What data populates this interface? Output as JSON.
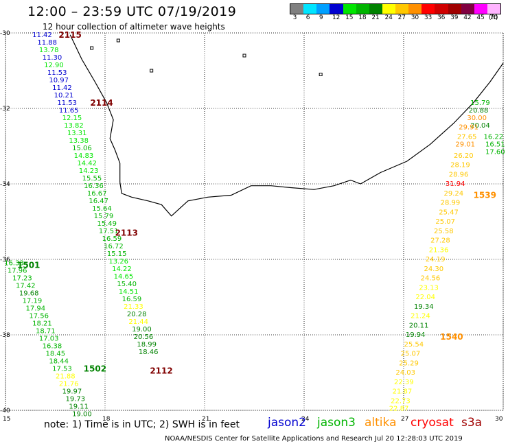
{
  "header": {
    "title": "12:00 – 23:59 UTC 07/19/2019",
    "subtitle": "12 hour collection of altimeter wave heights"
  },
  "legend": {
    "unit_label": "(ft)",
    "bins": [
      {
        "label": "3",
        "color": "#808080"
      },
      {
        "label": "6",
        "color": "#00e5ff"
      },
      {
        "label": "9",
        "color": "#00a0ff"
      },
      {
        "label": "12",
        "color": "#0000d0"
      },
      {
        "label": "15",
        "color": "#00e600"
      },
      {
        "label": "18",
        "color": "#00b400"
      },
      {
        "label": "21",
        "color": "#008200"
      },
      {
        "label": "24",
        "color": "#ffff00"
      },
      {
        "label": "27",
        "color": "#ffc800"
      },
      {
        "label": "30",
        "color": "#ff9000"
      },
      {
        "label": "33",
        "color": "#ff0000"
      },
      {
        "label": "36",
        "color": "#d00000"
      },
      {
        "label": "39",
        "color": "#a00000"
      },
      {
        "label": "42",
        "color": "#800040"
      },
      {
        "label": "45",
        "color": "#ff00ff"
      },
      {
        "label": "70",
        "color": "#ffb4ff"
      }
    ]
  },
  "map": {
    "lon_min": 15,
    "lon_max": 30,
    "lat_min": -40,
    "lat_max": -30,
    "lon_ticks": [
      "15",
      "18",
      "21",
      "24",
      "27",
      "30"
    ],
    "lat_ticks": [
      "-30",
      "-32",
      "-34",
      "-36",
      "-38",
      "-40"
    ]
  },
  "track_labels": [
    {
      "text": "2115",
      "lon": 16.85,
      "lat": -30.05,
      "color": "#800000"
    },
    {
      "text": "2114",
      "lon": 17.8,
      "lat": -31.85,
      "color": "#800000"
    },
    {
      "text": "2113",
      "lon": 18.55,
      "lat": -35.3,
      "color": "#800000"
    },
    {
      "text": "2112",
      "lon": 19.6,
      "lat": -38.95,
      "color": "#800000"
    },
    {
      "text": "1501",
      "lon": 15.6,
      "lat": -36.15,
      "color": "#008200"
    },
    {
      "text": "1502",
      "lon": 17.6,
      "lat": -38.9,
      "color": "#008200"
    },
    {
      "text": "1539",
      "lon": 29.35,
      "lat": -34.3,
      "color": "#ff9000"
    },
    {
      "text": "1540",
      "lon": 28.35,
      "lat": -38.05,
      "color": "#ff9000"
    }
  ],
  "measurements": [
    {
      "v": "11.42",
      "lon": 16.1,
      "lat": -30.05,
      "c": "#0000d0"
    },
    {
      "v": "11.88",
      "lon": 16.25,
      "lat": -30.25,
      "c": "#0000d0"
    },
    {
      "v": "13.78",
      "lon": 16.3,
      "lat": -30.45,
      "c": "#00e600"
    },
    {
      "v": "11.30",
      "lon": 16.4,
      "lat": -30.65,
      "c": "#0000d0"
    },
    {
      "v": "12.90",
      "lon": 16.45,
      "lat": -30.85,
      "c": "#00e600"
    },
    {
      "v": "11.53",
      "lon": 16.55,
      "lat": -31.05,
      "c": "#0000d0"
    },
    {
      "v": "10.97",
      "lon": 16.6,
      "lat": -31.25,
      "c": "#0000d0"
    },
    {
      "v": "11.42",
      "lon": 16.7,
      "lat": -31.45,
      "c": "#0000d0"
    },
    {
      "v": "10.21",
      "lon": 16.75,
      "lat": -31.65,
      "c": "#0000d0"
    },
    {
      "v": "11.53",
      "lon": 16.85,
      "lat": -31.85,
      "c": "#0000d0"
    },
    {
      "v": "11.65",
      "lon": 16.9,
      "lat": -32.05,
      "c": "#0000d0"
    },
    {
      "v": "12.15",
      "lon": 17.0,
      "lat": -32.25,
      "c": "#00e600"
    },
    {
      "v": "13.82",
      "lon": 17.05,
      "lat": -32.45,
      "c": "#00e600"
    },
    {
      "v": "13.31",
      "lon": 17.15,
      "lat": -32.65,
      "c": "#00e600"
    },
    {
      "v": "13.38",
      "lon": 17.2,
      "lat": -32.85,
      "c": "#00e600"
    },
    {
      "v": "15.06",
      "lon": 17.3,
      "lat": -33.05,
      "c": "#00b400"
    },
    {
      "v": "14.83",
      "lon": 17.35,
      "lat": -33.25,
      "c": "#00e600"
    },
    {
      "v": "14.42",
      "lon": 17.45,
      "lat": -33.45,
      "c": "#00e600"
    },
    {
      "v": "14.23",
      "lon": 17.5,
      "lat": -33.65,
      "c": "#00e600"
    },
    {
      "v": "15.55",
      "lon": 17.6,
      "lat": -33.85,
      "c": "#00b400"
    },
    {
      "v": "16.36",
      "lon": 17.65,
      "lat": -34.05,
      "c": "#00b400"
    },
    {
      "v": "16.67",
      "lon": 17.75,
      "lat": -34.25,
      "c": "#00b400"
    },
    {
      "v": "16.47",
      "lon": 17.8,
      "lat": -34.45,
      "c": "#00b400"
    },
    {
      "v": "15.64",
      "lon": 17.9,
      "lat": -34.65,
      "c": "#00b400"
    },
    {
      "v": "15.79",
      "lon": 17.95,
      "lat": -34.85,
      "c": "#00b400"
    },
    {
      "v": "15.49",
      "lon": 18.05,
      "lat": -35.05,
      "c": "#00b400"
    },
    {
      "v": "17.51",
      "lon": 18.1,
      "lat": -35.25,
      "c": "#00b400"
    },
    {
      "v": "16.59",
      "lon": 18.2,
      "lat": -35.45,
      "c": "#00b400"
    },
    {
      "v": "16.72",
      "lon": 18.25,
      "lat": -35.65,
      "c": "#00b400"
    },
    {
      "v": "15.15",
      "lon": 18.35,
      "lat": -35.85,
      "c": "#00b400"
    },
    {
      "v": "13.26",
      "lon": 18.4,
      "lat": -36.05,
      "c": "#00e600"
    },
    {
      "v": "14.22",
      "lon": 18.5,
      "lat": -36.25,
      "c": "#00e600"
    },
    {
      "v": "14.65",
      "lon": 18.55,
      "lat": -36.45,
      "c": "#00e600"
    },
    {
      "v": "15.40",
      "lon": 18.65,
      "lat": -36.65,
      "c": "#00b400"
    },
    {
      "v": "14.51",
      "lon": 18.7,
      "lat": -36.85,
      "c": "#00e600"
    },
    {
      "v": "16.59",
      "lon": 18.8,
      "lat": -37.05,
      "c": "#00b400"
    },
    {
      "v": "21.33",
      "lon": 18.85,
      "lat": -37.25,
      "c": "#ffff00"
    },
    {
      "v": "20.28",
      "lon": 18.95,
      "lat": -37.45,
      "c": "#008200"
    },
    {
      "v": "21.44",
      "lon": 19.0,
      "lat": -37.65,
      "c": "#ffff00"
    },
    {
      "v": "19.00",
      "lon": 19.1,
      "lat": -37.85,
      "c": "#008200"
    },
    {
      "v": "20.56",
      "lon": 19.15,
      "lat": -38.05,
      "c": "#008200"
    },
    {
      "v": "18.99",
      "lon": 19.25,
      "lat": -38.25,
      "c": "#008200"
    },
    {
      "v": "18.46",
      "lon": 19.3,
      "lat": -38.45,
      "c": "#008200"
    },
    {
      "v": "16.33",
      "lon": 15.25,
      "lat": -36.1,
      "c": "#00b400"
    },
    {
      "v": "17.96",
      "lon": 15.35,
      "lat": -36.3,
      "c": "#00b400"
    },
    {
      "v": "17.23",
      "lon": 15.5,
      "lat": -36.5,
      "c": "#00b400"
    },
    {
      "v": "17.42",
      "lon": 15.6,
      "lat": -36.7,
      "c": "#00b400"
    },
    {
      "v": "19.68",
      "lon": 15.7,
      "lat": -36.9,
      "c": "#008200"
    },
    {
      "v": "17.19",
      "lon": 15.8,
      "lat": -37.1,
      "c": "#00b400"
    },
    {
      "v": "17.94",
      "lon": 15.9,
      "lat": -37.3,
      "c": "#00b400"
    },
    {
      "v": "17.56",
      "lon": 16.0,
      "lat": -37.5,
      "c": "#00b400"
    },
    {
      "v": "18.21",
      "lon": 16.1,
      "lat": -37.7,
      "c": "#00b400"
    },
    {
      "v": "18.71",
      "lon": 16.2,
      "lat": -37.9,
      "c": "#00b400"
    },
    {
      "v": "17.03",
      "lon": 16.3,
      "lat": -38.1,
      "c": "#00b400"
    },
    {
      "v": "16.38",
      "lon": 16.4,
      "lat": -38.3,
      "c": "#00b400"
    },
    {
      "v": "18.45",
      "lon": 16.5,
      "lat": -38.5,
      "c": "#00b400"
    },
    {
      "v": "18.44",
      "lon": 16.6,
      "lat": -38.7,
      "c": "#00b400"
    },
    {
      "v": "17.53",
      "lon": 16.7,
      "lat": -38.9,
      "c": "#00b400"
    },
    {
      "v": "21.88",
      "lon": 16.8,
      "lat": -39.1,
      "c": "#ffff00"
    },
    {
      "v": "21.76",
      "lon": 16.9,
      "lat": -39.3,
      "c": "#ffff00"
    },
    {
      "v": "19.97",
      "lon": 17.0,
      "lat": -39.5,
      "c": "#008200"
    },
    {
      "v": "19.73",
      "lon": 17.1,
      "lat": -39.7,
      "c": "#008200"
    },
    {
      "v": "19.11",
      "lon": 17.2,
      "lat": -39.9,
      "c": "#008200"
    },
    {
      "v": "19.00",
      "lon": 17.3,
      "lat": -40.1,
      "c": "#008200"
    },
    {
      "v": "15.79",
      "lon": 29.3,
      "lat": -31.85,
      "c": "#00b400"
    },
    {
      "v": "20.88",
      "lon": 29.25,
      "lat": -32.05,
      "c": "#008200"
    },
    {
      "v": "30.00",
      "lon": 29.2,
      "lat": -32.25,
      "c": "#ff9000"
    },
    {
      "v": "20.04",
      "lon": 29.3,
      "lat": -32.45,
      "c": "#008200"
    },
    {
      "v": "29.91",
      "lon": 28.95,
      "lat": -32.5,
      "c": "#ff9000"
    },
    {
      "v": "16.22",
      "lon": 29.7,
      "lat": -32.75,
      "c": "#00b400"
    },
    {
      "v": "27.65",
      "lon": 28.9,
      "lat": -32.75,
      "c": "#ffc800"
    },
    {
      "v": "29.01",
      "lon": 28.85,
      "lat": -32.95,
      "c": "#ff9000"
    },
    {
      "v": "16.51",
      "lon": 29.8,
      "lat": -32.95,
      "c": "#00b400"
    },
    {
      "v": "26.20",
      "lon": 28.8,
      "lat": -33.25,
      "c": "#ffc800"
    },
    {
      "v": "17.60",
      "lon": 29.9,
      "lat": -33.15,
      "c": "#00b400"
    },
    {
      "v": "28.19",
      "lon": 28.7,
      "lat": -33.5,
      "c": "#ffc800"
    },
    {
      "v": "28.96",
      "lon": 28.65,
      "lat": -33.75,
      "c": "#ffc800"
    },
    {
      "v": "31.94",
      "lon": 28.55,
      "lat": -34.0,
      "c": "#ff0000"
    },
    {
      "v": "29.24",
      "lon": 28.5,
      "lat": -34.25,
      "c": "#ffc800"
    },
    {
      "v": "28.99",
      "lon": 28.4,
      "lat": -34.5,
      "c": "#ffc800"
    },
    {
      "v": "25.47",
      "lon": 28.35,
      "lat": -34.75,
      "c": "#ffc800"
    },
    {
      "v": "25.07",
      "lon": 28.25,
      "lat": -35.0,
      "c": "#ffc800"
    },
    {
      "v": "25.58",
      "lon": 28.2,
      "lat": -35.25,
      "c": "#ffc800"
    },
    {
      "v": "27.28",
      "lon": 28.1,
      "lat": -35.5,
      "c": "#ffc800"
    },
    {
      "v": "21.36",
      "lon": 28.05,
      "lat": -35.75,
      "c": "#ffff00"
    },
    {
      "v": "24.19",
      "lon": 27.95,
      "lat": -36.0,
      "c": "#ffc800"
    },
    {
      "v": "24.30",
      "lon": 27.9,
      "lat": -36.25,
      "c": "#ffc800"
    },
    {
      "v": "24.56",
      "lon": 27.8,
      "lat": -36.5,
      "c": "#ffc800"
    },
    {
      "v": "23.13",
      "lon": 27.75,
      "lat": -36.75,
      "c": "#ffff00"
    },
    {
      "v": "22.04",
      "lon": 27.65,
      "lat": -37.0,
      "c": "#ffff00"
    },
    {
      "v": "19.34",
      "lon": 27.6,
      "lat": -37.25,
      "c": "#008200"
    },
    {
      "v": "21.24",
      "lon": 27.5,
      "lat": -37.5,
      "c": "#ffff00"
    },
    {
      "v": "20.11",
      "lon": 27.45,
      "lat": -37.75,
      "c": "#008200"
    },
    {
      "v": "19.94",
      "lon": 27.35,
      "lat": -38.0,
      "c": "#008200"
    },
    {
      "v": "25.54",
      "lon": 27.3,
      "lat": -38.25,
      "c": "#ffc800"
    },
    {
      "v": "25.07",
      "lon": 27.2,
      "lat": -38.5,
      "c": "#ffc800"
    },
    {
      "v": "25.29",
      "lon": 27.15,
      "lat": -38.75,
      "c": "#ffc800"
    },
    {
      "v": "24.03",
      "lon": 27.05,
      "lat": -39.0,
      "c": "#ffc800"
    },
    {
      "v": "22.39",
      "lon": 27.0,
      "lat": -39.25,
      "c": "#ffff00"
    },
    {
      "v": "21.87",
      "lon": 26.95,
      "lat": -39.5,
      "c": "#ffff00"
    },
    {
      "v": "22.73",
      "lon": 26.9,
      "lat": -39.75,
      "c": "#ffff00"
    },
    {
      "v": "22.87",
      "lon": 26.85,
      "lat": -39.95,
      "c": "#ffff00"
    }
  ],
  "coast": [
    [
      16.95,
      -30.05
    ],
    [
      17.3,
      -30.7
    ],
    [
      17.7,
      -31.3
    ],
    [
      18.05,
      -31.85
    ],
    [
      18.25,
      -32.3
    ],
    [
      18.15,
      -32.8
    ],
    [
      18.3,
      -33.1
    ],
    [
      18.45,
      -33.45
    ],
    [
      18.45,
      -33.95
    ],
    [
      18.5,
      -34.25
    ],
    [
      18.8,
      -34.35
    ],
    [
      19.3,
      -34.45
    ],
    [
      19.7,
      -34.55
    ],
    [
      20.0,
      -34.85
    ],
    [
      20.5,
      -34.45
    ],
    [
      21.1,
      -34.35
    ],
    [
      21.8,
      -34.3
    ],
    [
      22.4,
      -34.05
    ],
    [
      23.0,
      -34.05
    ],
    [
      23.6,
      -34.1
    ],
    [
      24.3,
      -34.15
    ],
    [
      24.9,
      -34.05
    ],
    [
      25.4,
      -33.9
    ],
    [
      25.7,
      -34.0
    ],
    [
      26.3,
      -33.7
    ],
    [
      27.1,
      -33.4
    ],
    [
      27.8,
      -32.95
    ],
    [
      28.5,
      -32.4
    ],
    [
      29.1,
      -31.85
    ],
    [
      29.6,
      -31.3
    ],
    [
      30.0,
      -30.8
    ]
  ],
  "islands": [
    [
      17.6,
      -30.4
    ],
    [
      18.4,
      -30.2
    ],
    [
      19.4,
      -31.0
    ],
    [
      24.5,
      -31.1
    ],
    [
      22.2,
      -30.6
    ]
  ],
  "footer": {
    "note": "note:  1) Time is in UTC;  2) SWH is in feet",
    "satellites": [
      {
        "name": "jason2",
        "color": "#0000d0"
      },
      {
        "name": "jason3",
        "color": "#00b400"
      },
      {
        "name": "altika",
        "color": "#ff9000"
      },
      {
        "name": "cryosat",
        "color": "#ff0000"
      },
      {
        "name": "s3a",
        "color": "#a00000"
      }
    ],
    "credit": "NOAA/NESDIS Center for Satellite Applications and Research    Jul 20 12:28:03 UTC 2019"
  }
}
